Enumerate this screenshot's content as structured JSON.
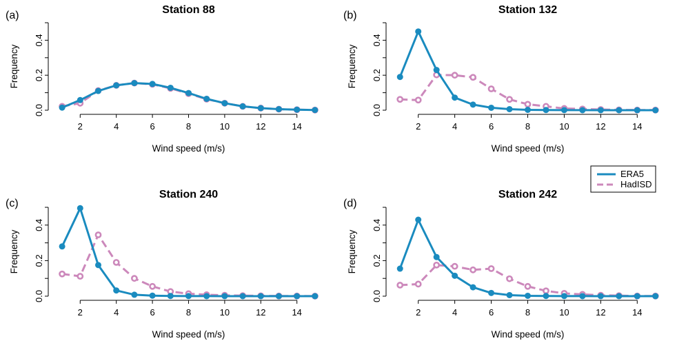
{
  "colors": {
    "era5": "#1a8bbf",
    "hadisd": "#cc88bb"
  },
  "legend": {
    "items": [
      "ERA5",
      "HadISD"
    ]
  },
  "chart_data": [
    {
      "type": "line",
      "tag": "(a)",
      "title": "Station 88",
      "xlabel": "Wind speed (m/s)",
      "ylabel": "Frequency",
      "xlim": [
        0.5,
        15.5
      ],
      "ylim": [
        0,
        0.5
      ],
      "xticks": [
        2,
        4,
        6,
        8,
        10,
        12,
        14
      ],
      "yticks": [
        0.0,
        0.2,
        0.4
      ],
      "x": [
        1,
        2,
        3,
        4,
        5,
        6,
        7,
        8,
        9,
        10,
        11,
        12,
        13,
        14,
        15
      ],
      "series": [
        {
          "name": "ERA5",
          "values": [
            0.015,
            0.058,
            0.11,
            0.142,
            0.155,
            0.15,
            0.128,
            0.098,
            0.065,
            0.04,
            0.022,
            0.012,
            0.006,
            0.003,
            0.001
          ]
        },
        {
          "name": "HadISD",
          "values": [
            0.022,
            0.04,
            0.112,
            0.142,
            0.155,
            0.148,
            0.125,
            0.095,
            0.063,
            0.04,
            0.022,
            0.012,
            0.006,
            0.003,
            0.001
          ]
        }
      ]
    },
    {
      "type": "line",
      "tag": "(b)",
      "title": "Station 132",
      "xlabel": "Wind speed (m/s)",
      "ylabel": "Frequency",
      "xlim": [
        0.5,
        15.5
      ],
      "ylim": [
        0,
        0.5
      ],
      "xticks": [
        2,
        4,
        6,
        8,
        10,
        12,
        14
      ],
      "yticks": [
        0.0,
        0.2,
        0.4
      ],
      "x": [
        1,
        2,
        3,
        4,
        5,
        6,
        7,
        8,
        9,
        10,
        11,
        12,
        13,
        14,
        15
      ],
      "series": [
        {
          "name": "ERA5",
          "values": [
            0.19,
            0.45,
            0.23,
            0.072,
            0.032,
            0.014,
            0.006,
            0.002,
            0.001,
            0.0005,
            0.0002,
            0.0001,
            0.0,
            0.0,
            0.0
          ]
        },
        {
          "name": "HadISD",
          "values": [
            0.062,
            0.058,
            0.202,
            0.2,
            0.188,
            0.122,
            0.062,
            0.034,
            0.022,
            0.01,
            0.007,
            0.004,
            0.002,
            0.001,
            0.001
          ]
        }
      ]
    },
    {
      "type": "line",
      "tag": "(c)",
      "title": "Station 240",
      "xlabel": "Wind speed (m/s)",
      "ylabel": "Frequency",
      "xlim": [
        0.5,
        15.5
      ],
      "ylim": [
        0,
        0.5
      ],
      "xticks": [
        2,
        4,
        6,
        8,
        10,
        12,
        14
      ],
      "yticks": [
        0.0,
        0.2,
        0.4
      ],
      "x": [
        1,
        2,
        3,
        4,
        5,
        6,
        7,
        8,
        9,
        10,
        11,
        12,
        13,
        14,
        15
      ],
      "series": [
        {
          "name": "ERA5",
          "values": [
            0.28,
            0.495,
            0.175,
            0.032,
            0.008,
            0.003,
            0.001,
            0.0005,
            0.0002,
            0.0001,
            0.0,
            0.0,
            0.0,
            0.0,
            0.0
          ]
        },
        {
          "name": "HadISD",
          "values": [
            0.125,
            0.112,
            0.345,
            0.19,
            0.1,
            0.055,
            0.026,
            0.014,
            0.008,
            0.005,
            0.003,
            0.002,
            0.001,
            0.001,
            0.0005
          ]
        }
      ]
    },
    {
      "type": "line",
      "tag": "(d)",
      "title": "Station 242",
      "xlabel": "Wind speed (m/s)",
      "ylabel": "Frequency",
      "xlim": [
        0.5,
        15.5
      ],
      "ylim": [
        0,
        0.5
      ],
      "xticks": [
        2,
        4,
        6,
        8,
        10,
        12,
        14
      ],
      "yticks": [
        0.0,
        0.2,
        0.4
      ],
      "x": [
        1,
        2,
        3,
        4,
        5,
        6,
        7,
        8,
        9,
        10,
        11,
        12,
        13,
        14,
        15
      ],
      "series": [
        {
          "name": "ERA5",
          "values": [
            0.155,
            0.43,
            0.22,
            0.115,
            0.05,
            0.018,
            0.006,
            0.002,
            0.001,
            0.0005,
            0.0002,
            0.0001,
            0.0,
            0.0,
            0.0
          ]
        },
        {
          "name": "HadISD",
          "values": [
            0.062,
            0.068,
            0.175,
            0.168,
            0.148,
            0.155,
            0.098,
            0.055,
            0.03,
            0.016,
            0.01,
            0.005,
            0.003,
            0.001,
            0.001
          ]
        }
      ]
    }
  ]
}
